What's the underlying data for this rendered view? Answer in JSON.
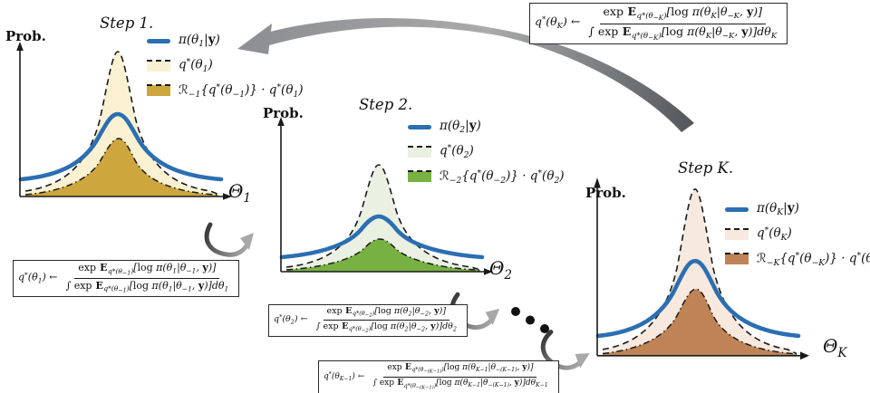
{
  "colors": {
    "ink": "#1a1a1a",
    "blue": "#2b6fb2",
    "s1_outer": "#f9f1d1",
    "s1_inner": "#cda63e",
    "s2_outer": "#eaf0e2",
    "s2_inner": "#78b143",
    "sk_outer": "#f7e9de",
    "sk_inner": "#bf8355",
    "arrow_dark": "#53575c",
    "arrow_mid": "#8f9093",
    "arrow_light": "#aaaaaa",
    "dot_black": "#111111"
  },
  "plots": [
    {
      "title": "Step 1.",
      "ylabel": "Prob.",
      "xlabel_html": "Θ<sub>1</sub>",
      "legend": [
        {
          "label_html": "π(θ<sub>1</sub>|<b class='rm'>y</b>)"
        },
        {
          "label_html": "q<sup>*</sup>(θ<sub>1</sub>)"
        },
        {
          "label_html": "ℛ<sub>−1</sub>{q<sup>*</sup>(θ<sub>−1</sub>)} · q<sup>*</sup>(θ<sub>1</sub>)"
        }
      ]
    },
    {
      "title": "Step 2.",
      "ylabel": "Prob.",
      "xlabel_html": "Θ<sub>2</sub>",
      "legend": [
        {
          "label_html": "π(θ<sub>2</sub>|<b class='rm'>y</b>)"
        },
        {
          "label_html": "q<sup>*</sup>(θ<sub>2</sub>)"
        },
        {
          "label_html": "ℛ<sub>−2</sub>{q<sup>*</sup>(θ<sub>−2</sub>)} · q<sup>*</sup>(θ<sub>2</sub>)"
        }
      ]
    },
    {
      "title": "Step K.",
      "ylabel": "Prob.",
      "xlabel_html": "Θ<sub>K</sub>",
      "legend": [
        {
          "label_html": "π(θ<sub>K</sub>|<b class='rm'>y</b>)"
        },
        {
          "label_html": "q<sup>*</sup>(θ<sub>K</sub>)"
        },
        {
          "label_html": "ℛ<sub>−K</sub>{q<sup>*</sup>(θ<sub>−K</sub>)} · q<sup>*</sup>(θ<sub>K</sub>)"
        }
      ]
    }
  ],
  "formulas": {
    "step1": {
      "lhs_html": "q<sup>*</sup>(θ<sub>1</sub>) ←",
      "num_html": "<span class='rm'>exp</span> <span class='bbE'>E</span><sub>q*(θ<sub>−1</sub>)</sub>[<span class='rm'>log</span> π(θ<sub>1</sub>|θ<sub>−1</sub>, <b class='rm'>y</b>)]",
      "den_html": "<span class='rm'>∫ exp</span> <span class='bbE'>E</span><sub>q*(θ<sub>−1</sub>)</sub>[<span class='rm'>log</span> π(θ<sub>1</sub>|θ<sub>−1</sub>, <b class='rm'>y</b>)]dθ<sub>1</sub>"
    },
    "step2": {
      "lhs_html": "q<sup>*</sup>(θ<sub>2</sub>) ←",
      "num_html": "<span class='rm'>exp</span> <span class='bbE'>E</span><sub>q*(θ<sub>−2</sub>)</sub>[<span class='rm'>log</span> π(θ<sub>2</sub>|θ<sub>−2</sub>, <b class='rm'>y</b>)]",
      "den_html": "<span class='rm'>∫ exp</span> <span class='bbE'>E</span><sub>q*(θ<sub>−2</sub>)</sub>[<span class='rm'>log</span> π(θ<sub>2</sub>|θ<sub>−2</sub>, <b class='rm'>y</b>)]dθ<sub>2</sub>"
    },
    "stepK": {
      "lhs_html": "q<sup>*</sup>(θ<sub>K</sub>) ←",
      "num_html": "<span class='rm'>exp</span> <span class='bbE'>E</span><sub>q*(θ<sub>−K</sub>)</sub>[<span class='rm'>log</span> π(θ<sub>K</sub>|θ<sub>−K</sub>, <b class='rm'>y</b>)]",
      "den_html": "<span class='rm'>∫ exp</span> <span class='bbE'>E</span><sub>q*(θ<sub>−K</sub>)</sub>[<span class='rm'>log</span> π(θ<sub>K</sub>|θ<sub>−K</sub>, <b class='rm'>y</b>)]dθ<sub>K</sub>"
    },
    "stepK1": {
      "lhs_html": "q<sup>*</sup>(θ<sub>K−1</sub>) ←",
      "num_html": "<span class='rm'>exp</span> <span class='bbE'>E</span><sub>q*(θ<sub>−(K−1)</sub>)</sub>[<span class='rm'>log</span> π(θ<sub>K−1</sub>|θ<sub>−(K−1)</sub>, <b class='rm'>y</b>)]",
      "den_html": "<span class='rm'>∫ exp</span> <span class='bbE'>E</span><sub>q*(θ<sub>−(K−1)</sub>)</sub>[<span class='rm'>log</span> π(θ<sub>K−1</sub>|θ<sub>−(K−1)</sub>, <b class='rm'>y</b>)]dθ<sub>K−1</sub>"
    }
  }
}
